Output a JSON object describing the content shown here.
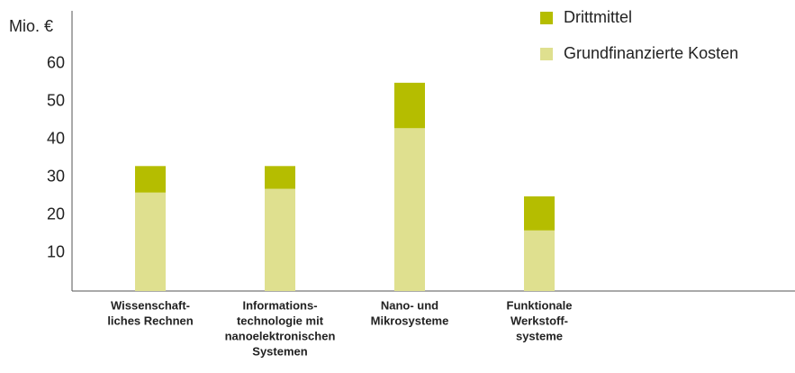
{
  "chart_data": {
    "type": "bar",
    "stacked": true,
    "y_label": "Mio. €",
    "categories": [
      [
        "Wissenschaft-",
        "liches Rechnen"
      ],
      [
        "Informations-",
        "technologie mit",
        "nanoelektronischen",
        "Systemen"
      ],
      [
        "Nano- und",
        "Mikrosysteme"
      ],
      [
        "Funktionale",
        "Werkstoff-",
        "systeme"
      ]
    ],
    "series": [
      {
        "name": "Grundfinanzierte Kosten",
        "color": "#dfe08f",
        "values": [
          26,
          27,
          43,
          16
        ]
      },
      {
        "name": "Drittmittel",
        "color": "#b5bd00",
        "values": [
          7,
          6,
          12,
          9
        ]
      }
    ],
    "ylim": [
      0,
      74
    ],
    "yticks": [
      10,
      20,
      30,
      40,
      50,
      60
    ],
    "grid": false
  }
}
